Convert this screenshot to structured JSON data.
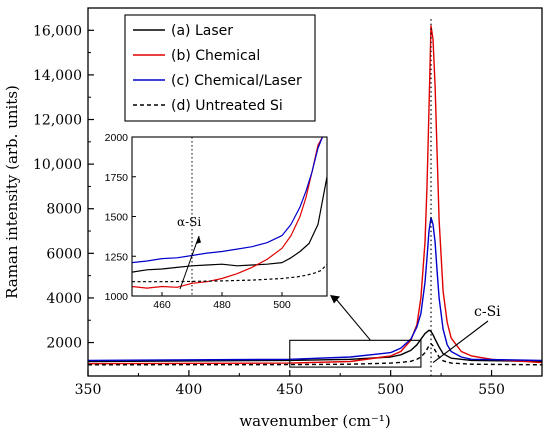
{
  "chart_data": {
    "type": "line",
    "title": "",
    "xlabel": "wavenumber (cm⁻¹)",
    "ylabel": "Raman intensity (arb. units)",
    "xlim": [
      350,
      575
    ],
    "ylim": [
      500,
      17000
    ],
    "x_ticks": [
      350,
      400,
      450,
      500,
      550
    ],
    "y_ticks": [
      2000,
      4000,
      6000,
      8000,
      10000,
      12000,
      14000,
      16000
    ],
    "x_tick_labels": [
      "350",
      "400",
      "450",
      "500",
      "550"
    ],
    "y_tick_labels": [
      "2000",
      "4000",
      "6000",
      "8000",
      "10,000",
      "12,000",
      "14,000",
      "16,000"
    ],
    "legend_position": "top-left",
    "series": [
      {
        "name": "(a) Laser",
        "color": "#000000",
        "dash": "solid",
        "x": [
          350,
          450,
          480,
          500,
          505,
          510,
          513,
          515,
          517,
          519,
          520,
          521,
          522,
          524,
          526,
          530,
          540,
          575
        ],
        "y": [
          1150,
          1200,
          1250,
          1350,
          1450,
          1650,
          1900,
          2150,
          2400,
          2550,
          2500,
          2350,
          2150,
          1800,
          1500,
          1300,
          1200,
          1150
        ]
      },
      {
        "name": "(b) Chemical",
        "color": "#e00000",
        "dash": "solid",
        "x": [
          350,
          450,
          480,
          500,
          505,
          510,
          513,
          515,
          517,
          518,
          519,
          520,
          521,
          522,
          523,
          524,
          526,
          528,
          530,
          535,
          540,
          550,
          575
        ],
        "y": [
          1050,
          1080,
          1150,
          1400,
          1600,
          2100,
          2800,
          4000,
          6500,
          9000,
          12500,
          16200,
          15600,
          13500,
          10500,
          7500,
          4300,
          2900,
          2200,
          1600,
          1400,
          1250,
          1100
        ]
      },
      {
        "name": "(c) Chemical/Laser",
        "color": "#0000cc",
        "dash": "solid",
        "x": [
          350,
          450,
          480,
          500,
          505,
          510,
          513,
          515,
          517,
          518,
          519,
          520,
          521,
          522,
          523,
          524,
          526,
          528,
          530,
          535,
          540,
          575
        ],
        "y": [
          1200,
          1250,
          1350,
          1550,
          1750,
          2150,
          2700,
          3300,
          4700,
          5800,
          7000,
          7600,
          7300,
          6500,
          5200,
          4000,
          2600,
          1900,
          1600,
          1350,
          1250,
          1200
        ]
      },
      {
        "name": "(d) Untreated Si",
        "color": "#000000",
        "dash": "dashed",
        "x": [
          350,
          450,
          480,
          500,
          505,
          510,
          513,
          515,
          517,
          519,
          520,
          521,
          522,
          524,
          526,
          530,
          540,
          575
        ],
        "y": [
          1000,
          1010,
          1030,
          1080,
          1110,
          1160,
          1250,
          1350,
          1550,
          1850,
          1950,
          1850,
          1650,
          1350,
          1180,
          1080,
          1030,
          1000
        ]
      }
    ],
    "reference_lines": [
      {
        "x": 520,
        "style": "dotted"
      }
    ],
    "annotations": [
      {
        "text": "c-Si"
      },
      {
        "text": "α-Si"
      }
    ],
    "inset": {
      "xlim": [
        450,
        515
      ],
      "ylim": [
        1000,
        2000
      ],
      "x_ticks": [
        460,
        480,
        500
      ],
      "y_ticks": [
        1000,
        1250,
        1500,
        1750,
        2000
      ],
      "x_tick_labels": [
        "460",
        "480",
        "500"
      ],
      "y_tick_labels": [
        "1000",
        "1250",
        "1500",
        "1750",
        "2000"
      ],
      "reference_lines": [
        {
          "x": 470,
          "style": "dotted"
        }
      ],
      "series": [
        {
          "name": "(a) Laser",
          "color": "#000000",
          "dash": "solid",
          "x": [
            450,
            455,
            460,
            465,
            470,
            475,
            480,
            485,
            490,
            495,
            500,
            503,
            506,
            509,
            512,
            515
          ],
          "y": [
            1150,
            1165,
            1170,
            1180,
            1190,
            1195,
            1200,
            1190,
            1195,
            1200,
            1210,
            1240,
            1280,
            1330,
            1450,
            1750
          ]
        },
        {
          "name": "(b) Chemical",
          "color": "#e00000",
          "dash": "solid",
          "x": [
            450,
            455,
            460,
            465,
            470,
            475,
            480,
            485,
            490,
            495,
            500,
            503,
            506,
            508,
            510,
            512,
            513.5
          ],
          "y": [
            1060,
            1050,
            1060,
            1055,
            1080,
            1090,
            1110,
            1140,
            1180,
            1230,
            1300,
            1380,
            1500,
            1620,
            1780,
            1950,
            2000
          ]
        },
        {
          "name": "(c) Chemical/Laser",
          "color": "#0000cc",
          "dash": "solid",
          "x": [
            450,
            455,
            460,
            465,
            470,
            475,
            480,
            485,
            490,
            495,
            500,
            503,
            506,
            508,
            510,
            512,
            513.5
          ],
          "y": [
            1210,
            1220,
            1235,
            1240,
            1255,
            1270,
            1280,
            1295,
            1310,
            1335,
            1380,
            1450,
            1560,
            1660,
            1780,
            1930,
            2000
          ]
        },
        {
          "name": "(d) Untreated Si",
          "color": "#000000",
          "dash": "dashed",
          "x": [
            450,
            460,
            470,
            480,
            490,
            495,
            500,
            505,
            508,
            511,
            513,
            515
          ],
          "y": [
            1090,
            1090,
            1092,
            1095,
            1100,
            1105,
            1110,
            1120,
            1130,
            1145,
            1160,
            1200
          ]
        }
      ]
    }
  }
}
